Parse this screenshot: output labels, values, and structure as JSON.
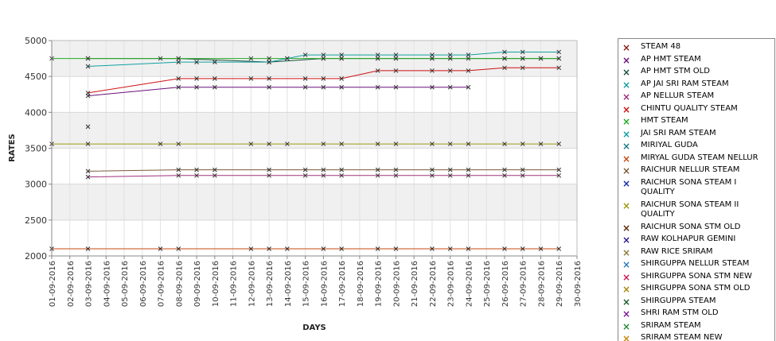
{
  "chart_data": {
    "type": "line",
    "xlabel": "DAYS",
    "ylabel": "RATES",
    "ylim": [
      2000,
      5000
    ],
    "yticks": [
      "2000",
      "2500",
      "3000",
      "3500",
      "4000",
      "4500",
      "5000"
    ],
    "categories": [
      "01-09-2016",
      "02-09-2016",
      "03-09-2016",
      "04-09-2016",
      "05-09-2016",
      "06-09-2016",
      "07-09-2016",
      "08-09-2016",
      "09-09-2016",
      "10-09-2016",
      "11-09-2016",
      "12-09-2016",
      "13-09-2016",
      "14-09-2016",
      "15-09-2016",
      "16-09-2016",
      "17-09-2016",
      "18-09-2016",
      "19-09-2016",
      "20-09-2016",
      "21-09-2016",
      "22-09-2016",
      "23-09-2016",
      "24-09-2016",
      "25-09-2016",
      "26-09-2016",
      "27-09-2016",
      "28-09-2016",
      "29-09-2016",
      "30-09-2016"
    ],
    "grid": true,
    "legend_position": "right",
    "series": [
      {
        "name": " STEAM 48",
        "color": "#8b1a1a",
        "values": [
          null,
          null,
          3800,
          null,
          null,
          null,
          null,
          null,
          null,
          null,
          null,
          null,
          null,
          null,
          null,
          null,
          null,
          null,
          null,
          null,
          null,
          null,
          null,
          null,
          null,
          null,
          null,
          null,
          null,
          null
        ]
      },
      {
        "name": "AP HMT STEAM",
        "color": "#6a0f7a",
        "values": [
          null,
          null,
          4230,
          null,
          null,
          null,
          null,
          4350,
          4350,
          4350,
          null,
          null,
          4350,
          null,
          4350,
          4350,
          4350,
          null,
          4350,
          4350,
          null,
          4350,
          4350,
          4350,
          null,
          null,
          null,
          null,
          null,
          null
        ]
      },
      {
        "name": "AP HMT STM OLD",
        "color": "#1f4f3f",
        "values": [
          null,
          null,
          4750,
          null,
          null,
          null,
          null,
          4750,
          null,
          null,
          null,
          null,
          4700,
          null,
          null,
          4750,
          4750,
          null,
          4750,
          4750,
          null,
          4750,
          4750,
          null,
          null,
          4750,
          4750,
          4750,
          4750,
          null
        ]
      },
      {
        "name": "AP JAI SRI RAM STEAM",
        "color": "#1a9e9e",
        "values": [
          null,
          null,
          null,
          null,
          null,
          null,
          null,
          null,
          null,
          null,
          null,
          null,
          null,
          null,
          null,
          null,
          null,
          null,
          null,
          null,
          null,
          null,
          null,
          null,
          null,
          null,
          null,
          null,
          null,
          null
        ]
      },
      {
        "name": "AP NELLUR STEAM",
        "color": "#a0307a",
        "values": [
          null,
          null,
          3100,
          null,
          null,
          null,
          null,
          3120,
          3120,
          3120,
          null,
          null,
          3120,
          null,
          3120,
          3120,
          3120,
          null,
          3120,
          3120,
          null,
          3120,
          3120,
          3120,
          null,
          3120,
          3120,
          null,
          3120,
          null
        ]
      },
      {
        "name": "CHINTU QUALITY STEAM",
        "color": "#cc1111",
        "values": [
          null,
          null,
          4270,
          null,
          null,
          null,
          null,
          4470,
          4470,
          4470,
          null,
          4470,
          4470,
          null,
          4470,
          4470,
          4470,
          null,
          4580,
          4580,
          null,
          4580,
          4580,
          4580,
          null,
          4620,
          4620,
          null,
          4620,
          null
        ]
      },
      {
        "name": "HMT STEAM",
        "color": "#22aa22",
        "values": [
          4750,
          null,
          4750,
          null,
          null,
          null,
          4750,
          4750,
          null,
          null,
          null,
          4750,
          4750,
          4750,
          null,
          4750,
          4750,
          null,
          4750,
          4750,
          null,
          4750,
          4750,
          4750,
          null,
          4750,
          4750,
          4750,
          4750,
          null
        ]
      },
      {
        "name": "JAI SRI RAM STEAM",
        "color": "#11a0a0",
        "values": [
          null,
          null,
          4640,
          null,
          null,
          null,
          null,
          4700,
          4700,
          4700,
          null,
          null,
          4700,
          4750,
          4800,
          4800,
          4800,
          null,
          4800,
          4800,
          null,
          4800,
          4800,
          4800,
          null,
          4840,
          4840,
          null,
          4840,
          null
        ]
      },
      {
        "name": "MIRIYAL GUDA",
        "color": "#1a7a8a",
        "values": [
          null,
          null,
          null,
          null,
          null,
          null,
          null,
          null,
          null,
          null,
          null,
          null,
          null,
          null,
          null,
          null,
          null,
          null,
          null,
          null,
          null,
          null,
          null,
          null,
          null,
          null,
          null,
          null,
          null,
          null
        ]
      },
      {
        "name": "MIRYAL GUDA STEAM NELLUR",
        "color": "#c84a12",
        "values": [
          2100,
          null,
          2100,
          null,
          null,
          null,
          2100,
          2100,
          null,
          null,
          null,
          2100,
          2100,
          2100,
          null,
          2100,
          2100,
          null,
          2100,
          2100,
          null,
          2100,
          2100,
          2100,
          null,
          2100,
          2100,
          2100,
          2100,
          null
        ]
      },
      {
        "name": "RAICHUR NELLUR STEAM",
        "color": "#7a5a3a",
        "values": [
          null,
          null,
          3180,
          null,
          null,
          null,
          null,
          3200,
          3200,
          3200,
          null,
          null,
          3200,
          null,
          3200,
          3200,
          3200,
          null,
          3200,
          3200,
          null,
          3200,
          3200,
          3200,
          null,
          3200,
          3200,
          null,
          3200,
          null
        ]
      },
      {
        "name": "RAICHUR SONA STEAM I QUALITY",
        "color": "#1a2aaa",
        "values": [
          null,
          null,
          null,
          null,
          null,
          null,
          null,
          null,
          null,
          null,
          null,
          null,
          null,
          null,
          null,
          null,
          null,
          null,
          null,
          null,
          null,
          null,
          null,
          null,
          null,
          null,
          null,
          null,
          null,
          null
        ]
      },
      {
        "name": "RAICHUR SONA STEAM II QUALITY",
        "color": "#9a9a10",
        "values": [
          3560,
          null,
          3560,
          null,
          null,
          null,
          3560,
          3560,
          null,
          null,
          null,
          3560,
          3560,
          3560,
          null,
          3560,
          3560,
          null,
          3560,
          3560,
          null,
          3560,
          3560,
          3560,
          null,
          3560,
          3560,
          3560,
          3560,
          null
        ]
      },
      {
        "name": "RAICHUR SONA STM OLD",
        "color": "#5a2a0a",
        "values": [
          null,
          null,
          null,
          null,
          null,
          null,
          null,
          null,
          null,
          null,
          null,
          null,
          null,
          null,
          null,
          null,
          null,
          null,
          null,
          null,
          null,
          null,
          null,
          null,
          null,
          null,
          null,
          null,
          null,
          null
        ]
      },
      {
        "name": "RAW KOLHAPUR GEMINI",
        "color": "#2a1a8a",
        "values": [
          null,
          null,
          null,
          null,
          null,
          null,
          null,
          null,
          null,
          null,
          null,
          null,
          null,
          null,
          null,
          null,
          null,
          null,
          null,
          null,
          null,
          null,
          null,
          null,
          null,
          null,
          null,
          null,
          null,
          null
        ]
      },
      {
        "name": "RAW RICE SRIRAM",
        "color": "#8a7a3a",
        "values": [
          null,
          null,
          null,
          null,
          null,
          null,
          null,
          null,
          null,
          null,
          null,
          null,
          null,
          null,
          null,
          null,
          null,
          null,
          null,
          null,
          null,
          null,
          null,
          null,
          null,
          null,
          null,
          null,
          null,
          null
        ]
      },
      {
        "name": "SHIRGUPPA NELLUR STEAM",
        "color": "#2a7abb",
        "values": [
          null,
          null,
          null,
          null,
          null,
          null,
          null,
          null,
          null,
          null,
          null,
          null,
          null,
          null,
          null,
          null,
          null,
          null,
          null,
          null,
          null,
          null,
          null,
          null,
          null,
          null,
          null,
          null,
          null,
          null
        ]
      },
      {
        "name": "SHIRGUPPA SONA STM NEW",
        "color": "#cc1a5a",
        "values": [
          null,
          null,
          null,
          null,
          null,
          null,
          null,
          null,
          null,
          null,
          null,
          null,
          null,
          null,
          null,
          null,
          null,
          null,
          null,
          null,
          null,
          null,
          null,
          null,
          null,
          null,
          null,
          null,
          null,
          null
        ]
      },
      {
        "name": "SHIRGUPPA SONA STM OLD",
        "color": "#aa8a0a",
        "values": [
          null,
          null,
          null,
          null,
          null,
          null,
          null,
          null,
          null,
          null,
          null,
          null,
          null,
          null,
          null,
          null,
          null,
          null,
          null,
          null,
          null,
          null,
          null,
          null,
          null,
          null,
          null,
          null,
          null,
          null
        ]
      },
      {
        "name": "SHIRGUPPA STEAM",
        "color": "#1a5a2a",
        "values": [
          null,
          null,
          null,
          null,
          null,
          null,
          null,
          null,
          null,
          null,
          null,
          null,
          null,
          null,
          null,
          null,
          null,
          null,
          null,
          null,
          null,
          null,
          null,
          null,
          null,
          null,
          null,
          null,
          null,
          null
        ]
      },
      {
        "name": "SHRI RAM STM OLD",
        "color": "#7a1a9a",
        "values": [
          null,
          null,
          null,
          null,
          null,
          null,
          null,
          null,
          null,
          null,
          null,
          null,
          null,
          null,
          null,
          null,
          null,
          null,
          null,
          null,
          null,
          null,
          null,
          null,
          null,
          null,
          null,
          null,
          null,
          null
        ]
      },
      {
        "name": "SRIRAM STEAM",
        "color": "#2a8a3a",
        "values": [
          null,
          null,
          null,
          null,
          null,
          null,
          null,
          null,
          null,
          null,
          null,
          null,
          null,
          null,
          null,
          null,
          null,
          null,
          null,
          null,
          null,
          null,
          null,
          null,
          null,
          null,
          null,
          null,
          null,
          null
        ]
      },
      {
        "name": "SRIRAM STEAM NEW",
        "color": "#c88a0a",
        "values": [
          null,
          null,
          null,
          null,
          null,
          null,
          null,
          null,
          null,
          null,
          null,
          null,
          null,
          null,
          null,
          null,
          null,
          null,
          null,
          null,
          null,
          null,
          null,
          null,
          null,
          null,
          null,
          null,
          null,
          null
        ]
      }
    ]
  }
}
